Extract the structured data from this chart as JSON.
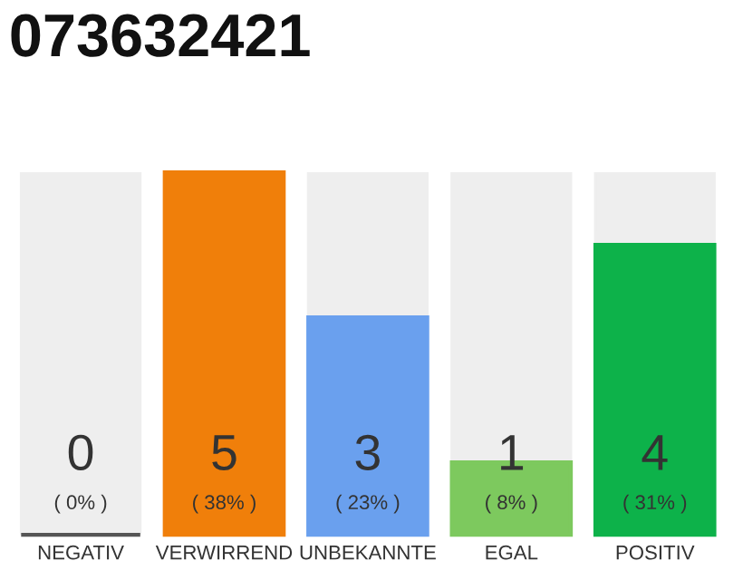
{
  "chart_data": {
    "type": "bar",
    "title": "073632421",
    "categories": [
      "NEGATIV",
      "VERWIRREND",
      "UNBEKANNTE",
      "EGAL",
      "POSITIV"
    ],
    "values": [
      0,
      5,
      3,
      1,
      4
    ],
    "colors": [
      "#555555",
      "#f07f0a",
      "#6aa0ee",
      "#7dc95e",
      "#0db24a"
    ],
    "value_labels": [
      "0",
      "5",
      "3",
      "1",
      "4"
    ],
    "annotations": [
      "( 0% )",
      "( 38% )",
      "( 23% )",
      "( 8% )",
      "( 31% )"
    ],
    "tick_labels": "x"
  }
}
